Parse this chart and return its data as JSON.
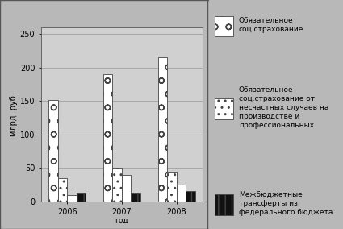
{
  "years": [
    "2006",
    "2007",
    "2008"
  ],
  "series": [
    {
      "label": "Обязательное\nсоц.страхование",
      "values": [
        152,
        190,
        215
      ],
      "hatch": "o",
      "facecolor": "white",
      "edgecolor": "#444444"
    },
    {
      "label": "Обязательное\nсоц.страхование от\nнесчастных случаев на\nпроизводстве и\nпрофессиональных",
      "values": [
        35,
        50,
        45
      ],
      "hatch": "..",
      "facecolor": "white",
      "edgecolor": "#444444"
    },
    {
      "label": "",
      "values": [
        10,
        40,
        25
      ],
      "hatch": "",
      "facecolor": "white",
      "edgecolor": "#444444"
    },
    {
      "label": "Межбюджетные\nтрансферты из\nфедерального бюджета",
      "values": [
        13,
        13,
        15
      ],
      "hatch": "||",
      "facecolor": "#111111",
      "edgecolor": "#444444"
    }
  ],
  "ylabel": "млрд. руб.",
  "xlabel": "год",
  "ylim": [
    0,
    260
  ],
  "yticks": [
    0,
    50,
    100,
    150,
    200,
    250
  ],
  "bg_color": "#b8b8b8",
  "plot_bg_color": "#d0d0d0",
  "bar_width": 0.17,
  "legend_labels": [
    "Обязательное\nсоц.страхование",
    "Обязательное\nсоц.страхование от\nнесчастных случаев на\nпроизводстве и\nпрофессиональных",
    "Межбюджетные\nтрансферты из\nфедерального бюджета"
  ],
  "legend_hatches": [
    "o",
    "..",
    "||"
  ],
  "legend_facecolors": [
    "white",
    "white",
    "#111111"
  ],
  "legend_edgecolors": [
    "#444444",
    "#444444",
    "#444444"
  ]
}
